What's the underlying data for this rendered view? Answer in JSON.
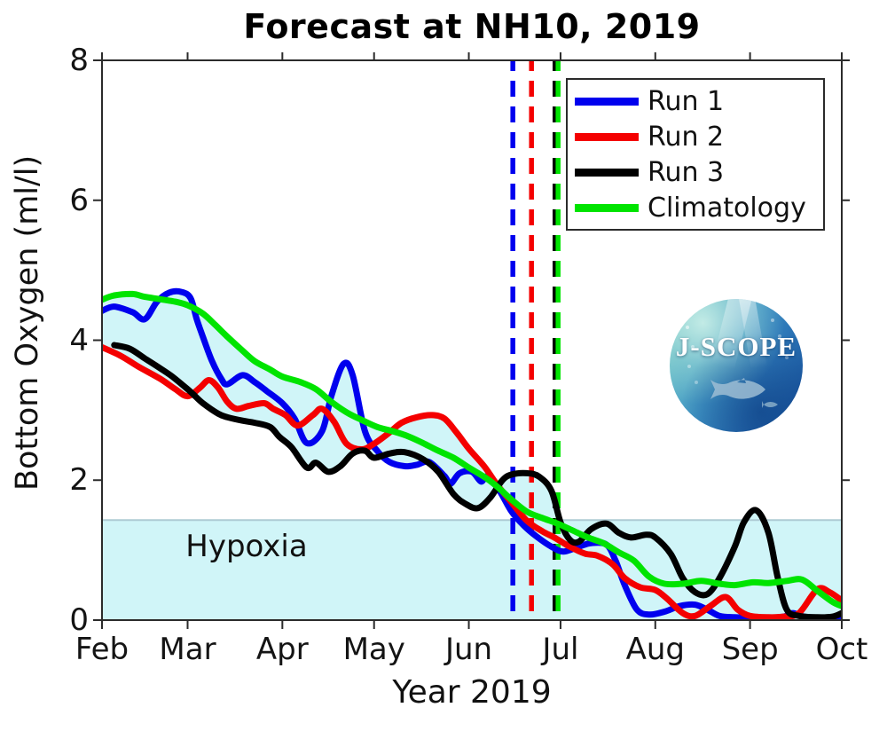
{
  "chart_data": {
    "type": "line",
    "title": "Forecast at NH10, 2019",
    "xlabel": "Year 2019",
    "ylabel": "Bottom Oxygen (ml/l)",
    "x_unit": "day of year 2019",
    "xlim": [
      32,
      274
    ],
    "ylim": [
      0,
      8
    ],
    "grid": false,
    "legend_position": "upper right",
    "x_ticks": [
      {
        "day": 32,
        "label": "Feb"
      },
      {
        "day": 60,
        "label": "Mar"
      },
      {
        "day": 91,
        "label": "Apr"
      },
      {
        "day": 121,
        "label": "May"
      },
      {
        "day": 152,
        "label": "Jun"
      },
      {
        "day": 182,
        "label": "Jul"
      },
      {
        "day": 213,
        "label": "Aug"
      },
      {
        "day": 244,
        "label": "Sep"
      },
      {
        "day": 274,
        "label": "Oct"
      }
    ],
    "y_ticks": [
      0,
      2,
      4,
      6,
      8
    ],
    "colors": {
      "run1": "#0000ee",
      "run2": "#f40000",
      "run3": "#000000",
      "climatology": "#00e400",
      "fill_cyan": "#d0f5f8",
      "hypoxia_line": "#adcbd4",
      "axis": "#2b2b2b"
    },
    "hypoxia": {
      "label": "Hypoxia",
      "threshold": 1.43
    },
    "vertical_dashed_lines": [
      {
        "name": "run1-init",
        "day": 166.4,
        "color_key": "run1"
      },
      {
        "name": "run2-init",
        "day": 172.5,
        "color_key": "run2"
      },
      {
        "name": "run3-init",
        "day": 180.2,
        "color_key": "run3"
      },
      {
        "name": "climatology-mark",
        "day": 181.2,
        "color_key": "climatology"
      }
    ],
    "series": [
      {
        "name": "Run 1",
        "color_key": "run1",
        "points": [
          [
            32,
            4.42
          ],
          [
            36,
            4.48
          ],
          [
            42,
            4.4
          ],
          [
            46,
            4.3
          ],
          [
            50,
            4.55
          ],
          [
            54,
            4.68
          ],
          [
            58,
            4.69
          ],
          [
            61,
            4.6
          ],
          [
            63,
            4.3
          ],
          [
            65,
            4.05
          ],
          [
            68,
            3.7
          ],
          [
            71,
            3.45
          ],
          [
            73,
            3.37
          ],
          [
            78,
            3.5
          ],
          [
            82,
            3.4
          ],
          [
            86,
            3.27
          ],
          [
            91,
            3.1
          ],
          [
            95,
            2.88
          ],
          [
            99,
            2.53
          ],
          [
            104,
            2.7
          ],
          [
            107,
            3.2
          ],
          [
            111,
            3.66
          ],
          [
            114,
            3.5
          ],
          [
            118,
            2.7
          ],
          [
            122,
            2.42
          ],
          [
            126,
            2.26
          ],
          [
            131,
            2.2
          ],
          [
            135,
            2.22
          ],
          [
            139,
            2.26
          ],
          [
            144,
            2.06
          ],
          [
            146,
            1.95
          ],
          [
            149,
            2.1
          ],
          [
            153,
            2.12
          ],
          [
            156,
            1.98
          ],
          [
            158,
            2.05
          ],
          [
            162,
            1.85
          ],
          [
            166,
            1.55
          ],
          [
            170,
            1.35
          ],
          [
            174,
            1.2
          ],
          [
            179,
            1.05
          ],
          [
            183,
            0.98
          ],
          [
            188,
            1.05
          ],
          [
            192,
            1.1
          ],
          [
            197,
            1.08
          ],
          [
            200,
            0.85
          ],
          [
            203,
            0.5
          ],
          [
            207,
            0.15
          ],
          [
            211,
            0.08
          ],
          [
            216,
            0.12
          ],
          [
            221,
            0.2
          ],
          [
            226,
            0.22
          ],
          [
            230,
            0.15
          ],
          [
            234,
            0.06
          ],
          [
            239,
            0.04
          ],
          [
            248,
            0.03
          ],
          [
            255,
            0.05
          ],
          [
            258,
            0.1
          ],
          [
            263,
            0.04
          ],
          [
            274,
            0.04
          ]
        ]
      },
      {
        "name": "Run 2",
        "color_key": "run2",
        "points": [
          [
            32,
            3.9
          ],
          [
            38,
            3.78
          ],
          [
            44,
            3.62
          ],
          [
            51,
            3.45
          ],
          [
            56,
            3.3
          ],
          [
            60,
            3.2
          ],
          [
            64,
            3.32
          ],
          [
            67,
            3.43
          ],
          [
            70,
            3.32
          ],
          [
            73,
            3.12
          ],
          [
            76,
            3.02
          ],
          [
            80,
            3.06
          ],
          [
            85,
            3.1
          ],
          [
            88,
            3.02
          ],
          [
            92,
            2.93
          ],
          [
            96,
            2.78
          ],
          [
            101,
            2.93
          ],
          [
            104,
            3.02
          ],
          [
            108,
            2.83
          ],
          [
            112,
            2.52
          ],
          [
            117,
            2.44
          ],
          [
            121,
            2.52
          ],
          [
            126,
            2.68
          ],
          [
            130,
            2.82
          ],
          [
            135,
            2.9
          ],
          [
            140,
            2.93
          ],
          [
            144,
            2.88
          ],
          [
            148,
            2.68
          ],
          [
            152,
            2.45
          ],
          [
            157,
            2.2
          ],
          [
            161,
            1.95
          ],
          [
            166,
            1.68
          ],
          [
            171,
            1.42
          ],
          [
            176,
            1.27
          ],
          [
            180,
            1.18
          ],
          [
            185,
            1.05
          ],
          [
            190,
            0.95
          ],
          [
            194,
            0.92
          ],
          [
            199,
            0.8
          ],
          [
            203,
            0.6
          ],
          [
            208,
            0.47
          ],
          [
            213,
            0.43
          ],
          [
            217,
            0.3
          ],
          [
            222,
            0.1
          ],
          [
            226,
            0.06
          ],
          [
            231,
            0.2
          ],
          [
            236,
            0.33
          ],
          [
            240,
            0.15
          ],
          [
            244,
            0.06
          ],
          [
            250,
            0.04
          ],
          [
            255,
            0.05
          ],
          [
            260,
            0.1
          ],
          [
            266,
            0.44
          ],
          [
            270,
            0.4
          ],
          [
            274,
            0.28
          ]
        ]
      },
      {
        "name": "Run 3",
        "color_key": "run3",
        "points": [
          [
            36,
            3.93
          ],
          [
            41,
            3.88
          ],
          [
            46,
            3.74
          ],
          [
            51,
            3.6
          ],
          [
            55,
            3.48
          ],
          [
            60,
            3.3
          ],
          [
            62,
            3.22
          ],
          [
            65,
            3.1
          ],
          [
            70,
            2.95
          ],
          [
            73,
            2.9
          ],
          [
            78,
            2.85
          ],
          [
            82,
            2.82
          ],
          [
            87,
            2.76
          ],
          [
            90,
            2.62
          ],
          [
            94,
            2.47
          ],
          [
            99,
            2.18
          ],
          [
            102,
            2.25
          ],
          [
            106,
            2.12
          ],
          [
            110,
            2.2
          ],
          [
            114,
            2.38
          ],
          [
            118,
            2.42
          ],
          [
            121,
            2.32
          ],
          [
            126,
            2.38
          ],
          [
            131,
            2.4
          ],
          [
            137,
            2.3
          ],
          [
            142,
            2.12
          ],
          [
            147,
            1.8
          ],
          [
            151,
            1.66
          ],
          [
            155,
            1.6
          ],
          [
            159,
            1.75
          ],
          [
            163,
            2.0
          ],
          [
            166,
            2.08
          ],
          [
            171,
            2.1
          ],
          [
            175,
            2.05
          ],
          [
            179,
            1.85
          ],
          [
            182,
            1.4
          ],
          [
            185,
            1.15
          ],
          [
            188,
            1.12
          ],
          [
            192,
            1.3
          ],
          [
            197,
            1.38
          ],
          [
            201,
            1.25
          ],
          [
            205,
            1.18
          ],
          [
            210,
            1.22
          ],
          [
            213,
            1.18
          ],
          [
            218,
            0.95
          ],
          [
            222,
            0.6
          ],
          [
            226,
            0.4
          ],
          [
            230,
            0.37
          ],
          [
            234,
            0.6
          ],
          [
            239,
            1.05
          ],
          [
            242,
            1.4
          ],
          [
            246,
            1.57
          ],
          [
            250,
            1.25
          ],
          [
            253,
            0.62
          ],
          [
            256,
            0.15
          ],
          [
            260,
            0.06
          ],
          [
            266,
            0.04
          ],
          [
            271,
            0.05
          ],
          [
            274,
            0.1
          ]
        ]
      },
      {
        "name": "Climatology",
        "color_key": "climatology",
        "points": [
          [
            32,
            4.58
          ],
          [
            36,
            4.64
          ],
          [
            42,
            4.66
          ],
          [
            46,
            4.62
          ],
          [
            52,
            4.58
          ],
          [
            56,
            4.55
          ],
          [
            60,
            4.5
          ],
          [
            65,
            4.38
          ],
          [
            69,
            4.22
          ],
          [
            73,
            4.05
          ],
          [
            78,
            3.85
          ],
          [
            82,
            3.7
          ],
          [
            87,
            3.58
          ],
          [
            91,
            3.48
          ],
          [
            97,
            3.4
          ],
          [
            102,
            3.3
          ],
          [
            107,
            3.12
          ],
          [
            112,
            2.97
          ],
          [
            117,
            2.86
          ],
          [
            122,
            2.76
          ],
          [
            127,
            2.7
          ],
          [
            132,
            2.63
          ],
          [
            137,
            2.53
          ],
          [
            142,
            2.42
          ],
          [
            147,
            2.32
          ],
          [
            152,
            2.18
          ],
          [
            158,
            2.02
          ],
          [
            162,
            1.88
          ],
          [
            166,
            1.72
          ],
          [
            171,
            1.55
          ],
          [
            176,
            1.46
          ],
          [
            181,
            1.38
          ],
          [
            186,
            1.28
          ],
          [
            191,
            1.18
          ],
          [
            196,
            1.1
          ],
          [
            201,
            0.97
          ],
          [
            206,
            0.85
          ],
          [
            211,
            0.62
          ],
          [
            216,
            0.52
          ],
          [
            222,
            0.52
          ],
          [
            228,
            0.56
          ],
          [
            234,
            0.52
          ],
          [
            239,
            0.5
          ],
          [
            245,
            0.54
          ],
          [
            250,
            0.53
          ],
          [
            256,
            0.56
          ],
          [
            261,
            0.58
          ],
          [
            266,
            0.42
          ],
          [
            271,
            0.26
          ],
          [
            274,
            0.2
          ]
        ]
      }
    ]
  },
  "logo": {
    "text": "J-SCOPE"
  }
}
